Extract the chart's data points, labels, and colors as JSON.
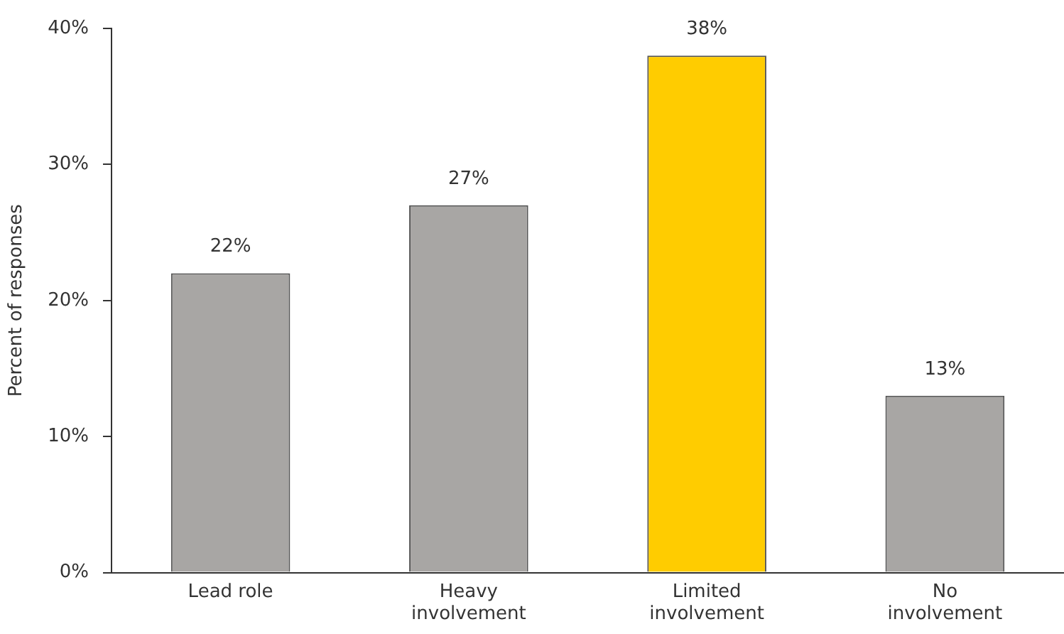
{
  "chart_data": {
    "type": "bar",
    "ylabel": "Percent of responses",
    "categories": [
      "Lead role",
      "Heavy involvement",
      "Limited involvement",
      "No involvement"
    ],
    "values": [
      22,
      27,
      38,
      13
    ],
    "colors": [
      "#a8a6a4",
      "#a8a6a4",
      "#ffcc00",
      "#a8a6a4"
    ],
    "value_labels": [
      "22%",
      "27%",
      "38%",
      "13%"
    ],
    "ylim": [
      0,
      40
    ],
    "yticks": [
      {
        "value": 0,
        "label": "0%"
      },
      {
        "value": 10,
        "label": "10%"
      },
      {
        "value": 20,
        "label": "20%"
      },
      {
        "value": 30,
        "label": "30%"
      },
      {
        "value": 40,
        "label": "40%"
      }
    ],
    "grid": false,
    "legend": false
  }
}
